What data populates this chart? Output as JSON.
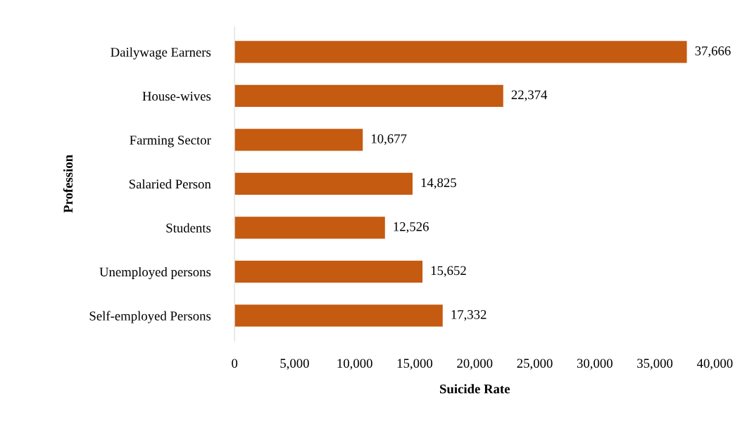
{
  "chart_data": {
    "type": "bar",
    "orientation": "horizontal",
    "xlabel": "Suicide Rate",
    "ylabel": "Profession",
    "categories": [
      "Dailywage Earners",
      "House-wives",
      "Farming Sector",
      "Salaried Person",
      "Students",
      "Unemployed persons",
      "Self-employed Persons"
    ],
    "values": [
      37666,
      22374,
      10677,
      14825,
      12526,
      15652,
      17332
    ],
    "color": "#c55a11",
    "value_labels": [
      "37,666",
      "22,374",
      "10,677",
      "14,825",
      "12,526",
      "15,652",
      "17,332"
    ],
    "xlim": [
      0,
      40000
    ],
    "xticks": [
      {
        "value": 0,
        "label": "0"
      },
      {
        "value": 5000,
        "label": "5,000"
      },
      {
        "value": 10000,
        "label": "10,000"
      },
      {
        "value": 15000,
        "label": "15,000"
      },
      {
        "value": 20000,
        "label": "20,000"
      },
      {
        "value": 25000,
        "label": "25,000"
      },
      {
        "value": 30000,
        "label": "30,000"
      },
      {
        "value": 35000,
        "label": "35,000"
      },
      {
        "value": 40000,
        "label": "40,000"
      }
    ],
    "grid": false,
    "legend": false
  }
}
